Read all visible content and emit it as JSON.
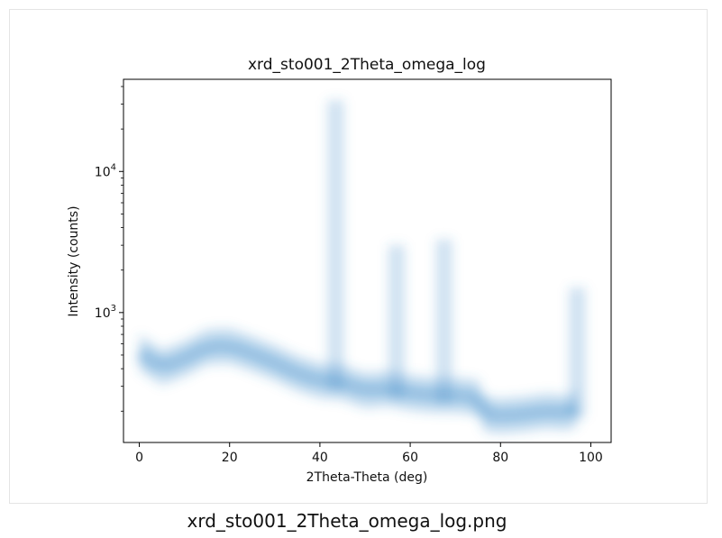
{
  "caption": "xrd_sto001_2Theta_omega_log.png",
  "colors": {
    "density": "#3a89c9",
    "axes": "#000000",
    "background": "#ffffff"
  },
  "chart_data": {
    "type": "scatter",
    "rendering": "smoothed density (2D histogram) of intensity vs angle",
    "title": "xrd_sto001_2Theta_omega_log",
    "xlabel": "2Theta-Theta (deg)",
    "ylabel": "Intensity (counts)",
    "xlim": [
      -3.5,
      104.5
    ],
    "ylim": [
      120,
      45000
    ],
    "yscale": "log",
    "grid": false,
    "x_ticks": [
      0,
      20,
      40,
      60,
      80,
      100
    ],
    "x_tick_labels": [
      "0",
      "20",
      "40",
      "60",
      "80",
      "100"
    ],
    "y_ticks": [
      1000,
      10000
    ],
    "y_tick_labels": [
      {
        "base": "10",
        "exp": "3"
      },
      {
        "base": "10",
        "exp": "4"
      }
    ],
    "baseline": {
      "x": [
        0,
        5,
        10,
        15,
        20,
        25,
        30,
        35,
        40,
        45,
        50,
        55,
        60,
        65,
        70,
        75,
        76.5,
        80,
        85,
        90,
        95,
        97
      ],
      "intensity": [
        520,
        410,
        470,
        570,
        580,
        510,
        440,
        370,
        330,
        320,
        280,
        290,
        270,
        260,
        260,
        250,
        190,
        185,
        190,
        200,
        195,
        210
      ]
    },
    "peaks": [
      {
        "x": 43.5,
        "intensity": 32000
      },
      {
        "x": 57.0,
        "intensity": 3000
      },
      {
        "x": 67.5,
        "intensity": 3300
      },
      {
        "x": 97.0,
        "intensity": 1500
      }
    ]
  }
}
